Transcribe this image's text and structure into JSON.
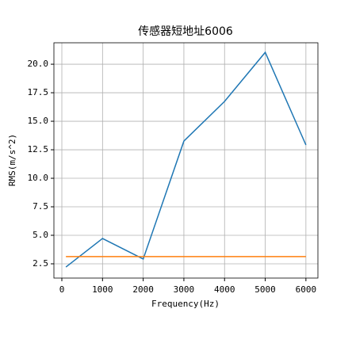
{
  "chart_data": {
    "type": "line",
    "title": "传感器短地址6006",
    "x_label": "Frequency(Hz)",
    "y_label": "RMS(m/s^2)",
    "x": [
      100,
      1000,
      2000,
      3000,
      4000,
      5000,
      6000
    ],
    "series": [
      {
        "color": "#1f77b4",
        "values": [
          2.22,
          4.72,
          2.92,
          13.26,
          16.74,
          21.04,
          12.92
        ]
      },
      {
        "color": "#ff7f0e",
        "values": [
          3.13,
          3.13,
          3.13,
          3.13,
          3.13,
          3.13,
          3.13
        ]
      }
    ],
    "xlim": [
      -195,
      6295
    ],
    "xticks": [
      0,
      1000,
      2000,
      3000,
      4000,
      5000,
      6000
    ],
    "ylim": [
      1.25,
      21.88
    ],
    "yticks": [
      {
        "value": 2.5,
        "label": "2.5"
      },
      {
        "value": 5,
        "label": "5.0"
      },
      {
        "value": 7.5,
        "label": "7.5"
      },
      {
        "value": 10,
        "label": "10.0"
      },
      {
        "value": 12.5,
        "label": "12.5"
      },
      {
        "value": 15,
        "label": "15.0"
      },
      {
        "value": 17.5,
        "label": "17.5"
      },
      {
        "value": 20,
        "label": "20.0"
      }
    ],
    "grid": true
  }
}
